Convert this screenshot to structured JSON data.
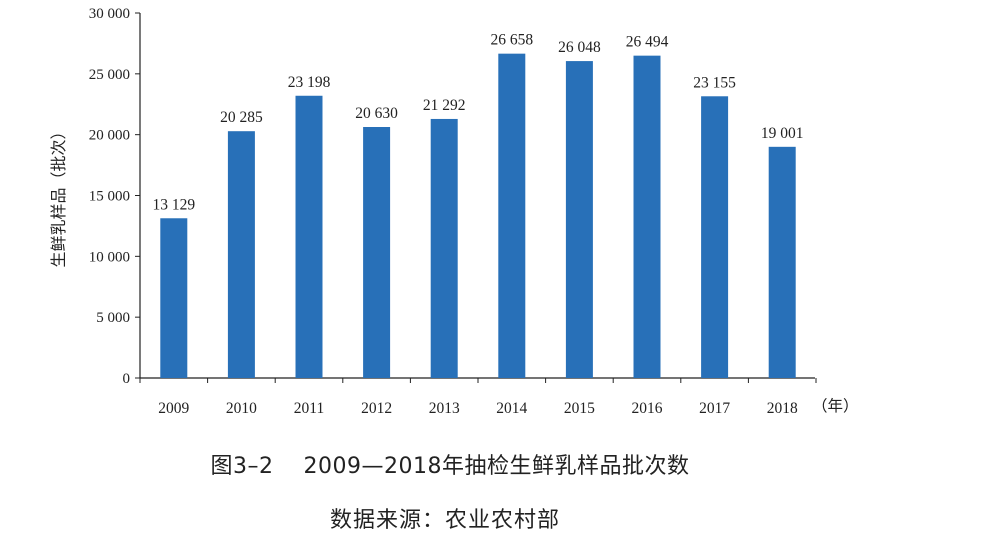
{
  "chart_data": {
    "type": "bar",
    "categories": [
      "2009",
      "2010",
      "2011",
      "2012",
      "2013",
      "2014",
      "2015",
      "2016",
      "2017",
      "2018"
    ],
    "values": [
      13129,
      20285,
      23198,
      20630,
      21292,
      26658,
      26048,
      26494,
      23155,
      19001
    ],
    "value_labels": [
      "13 129",
      "20 285",
      "23 198",
      "20 630",
      "21 292",
      "26 658",
      "26 048",
      "26 494",
      "23 155",
      "19 001"
    ],
    "ylabel": "生鲜乳样品（批次）",
    "xunit": "（年）",
    "ylim": [
      0,
      30000
    ],
    "yticks": [
      0,
      5000,
      10000,
      15000,
      20000,
      25000,
      30000
    ],
    "ytick_labels": [
      "0",
      "5 000",
      "10 000",
      "15 000",
      "20 000",
      "25 000",
      "30 000"
    ],
    "bar_color": "#2870b8",
    "grid": false
  },
  "caption": {
    "number": "图3–2",
    "title": "2009—2018年抽检生鲜乳样品批次数",
    "source": "数据来源：农业农村部"
  }
}
